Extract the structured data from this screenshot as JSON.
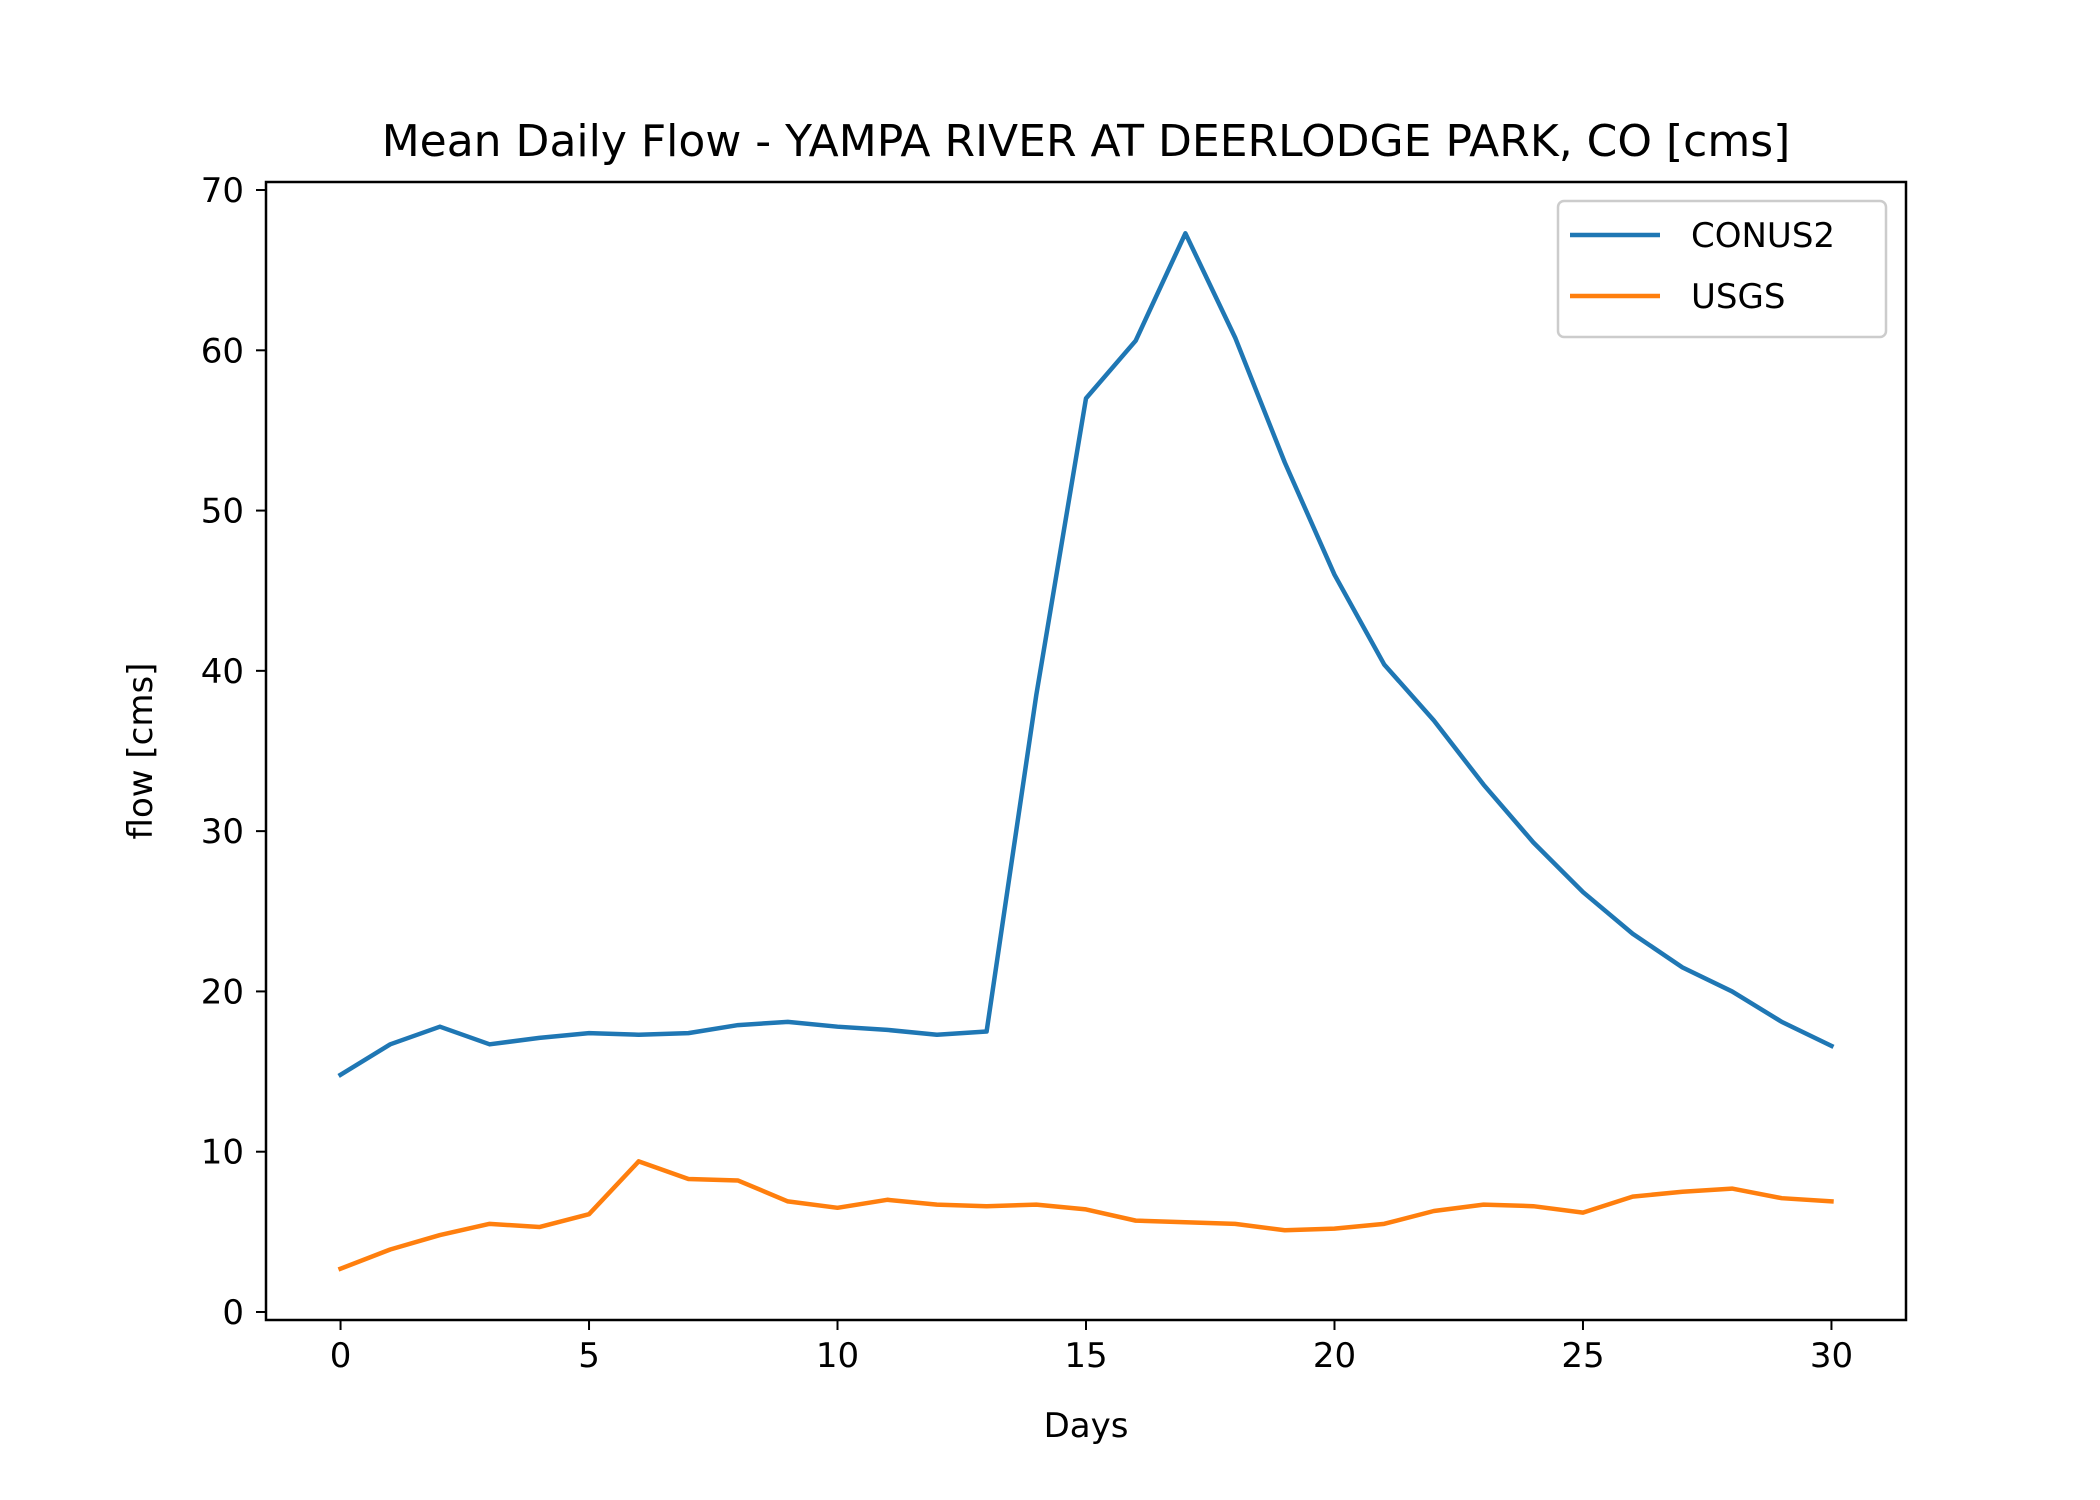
{
  "chart_data": {
    "type": "line",
    "title": "Mean Daily Flow - YAMPA RIVER AT DEERLODGE PARK, CO [cms]",
    "xlabel": "Days",
    "ylabel": "flow [cms]",
    "xlim": [
      -1.5,
      31.5
    ],
    "ylim": [
      -0.5,
      70.5
    ],
    "xticks": [
      0,
      5,
      10,
      15,
      20,
      25,
      30
    ],
    "xtick_labels": [
      "0",
      "5",
      "10",
      "15",
      "20",
      "25",
      "30"
    ],
    "yticks": [
      0,
      10,
      20,
      30,
      40,
      50,
      60,
      70
    ],
    "ytick_labels": [
      "0",
      "10",
      "20",
      "30",
      "40",
      "50",
      "60",
      "70"
    ],
    "grid": false,
    "legend_position": "top-right",
    "x": [
      0,
      1,
      2,
      3,
      4,
      5,
      6,
      7,
      8,
      9,
      10,
      11,
      12,
      13,
      14,
      15,
      16,
      17,
      18,
      19,
      20,
      21,
      22,
      23,
      24,
      25,
      26,
      27,
      28,
      29,
      30
    ],
    "series": [
      {
        "name": "CONUS2",
        "color": "#1f77b4",
        "values": [
          14.8,
          16.7,
          17.8,
          16.7,
          17.1,
          17.4,
          17.3,
          17.4,
          17.9,
          18.1,
          17.8,
          17.6,
          17.3,
          17.5,
          38.5,
          57.0,
          60.6,
          67.3,
          60.8,
          53.0,
          46.0,
          40.4,
          36.9,
          32.9,
          29.3,
          26.2,
          23.6,
          21.5,
          20.0,
          18.1,
          16.6
        ]
      },
      {
        "name": "USGS",
        "color": "#ff7f0e",
        "values": [
          2.7,
          3.9,
          4.8,
          5.5,
          5.3,
          6.1,
          9.4,
          8.3,
          8.2,
          6.9,
          6.5,
          7.0,
          6.7,
          6.6,
          6.7,
          6.4,
          5.7,
          5.6,
          5.5,
          5.1,
          5.2,
          5.5,
          6.3,
          6.7,
          6.6,
          6.2,
          7.2,
          7.5,
          7.7,
          7.1,
          6.9
        ]
      }
    ]
  }
}
